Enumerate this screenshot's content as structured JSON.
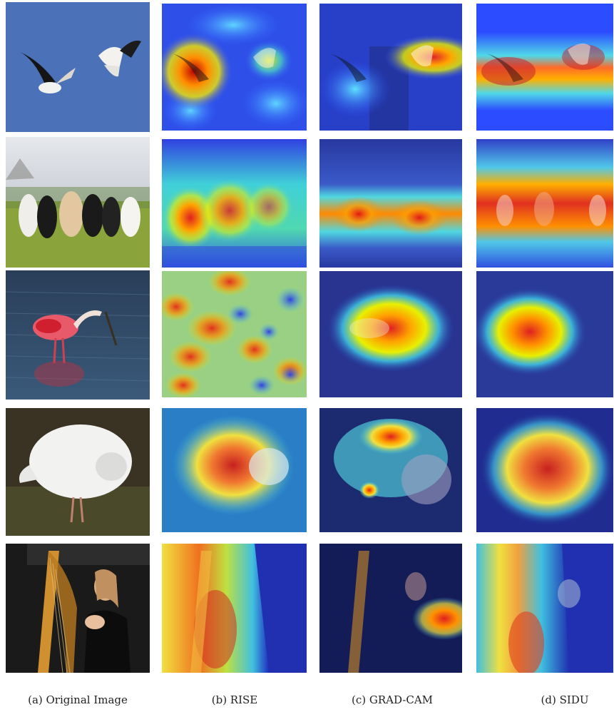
{
  "figure": {
    "captions": [
      "(a) Original Image",
      "(b) RISE",
      "(c) GRAD-CAM",
      "(d) SIDU"
    ],
    "rows": [
      {
        "subject": "two-birds-in-flight"
      },
      {
        "subject": "row-of-dogs"
      },
      {
        "subject": "spoonbill-in-water"
      },
      {
        "subject": "white-bird-on-ground"
      },
      {
        "subject": "woman-playing-harp"
      }
    ],
    "methods": [
      "original",
      "rise",
      "grad-cam",
      "sidu"
    ]
  }
}
